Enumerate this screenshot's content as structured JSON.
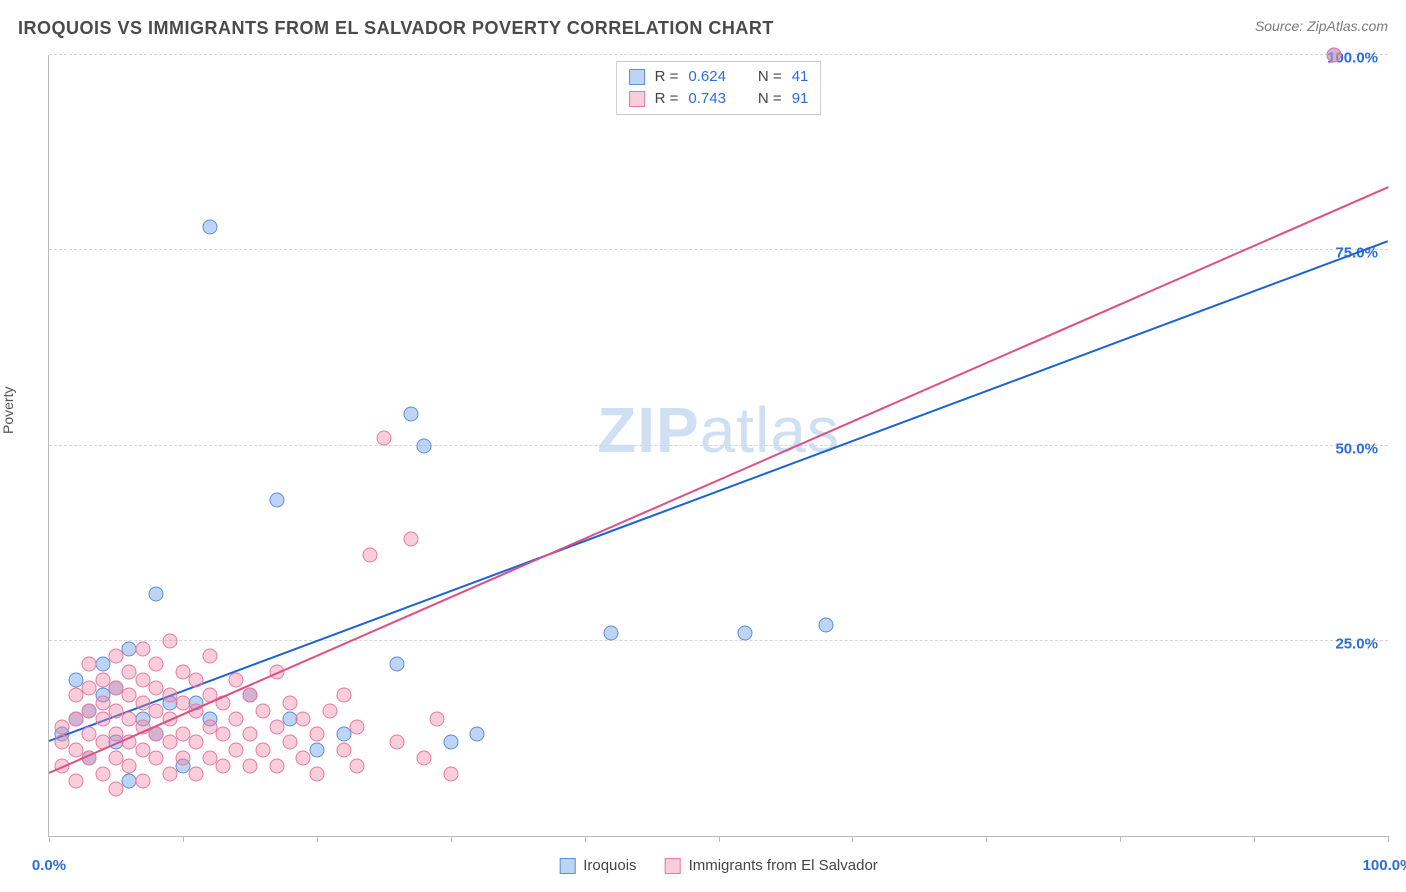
{
  "header": {
    "title": "IROQUOIS VS IMMIGRANTS FROM EL SALVADOR POVERTY CORRELATION CHART",
    "source_prefix": "Source: ",
    "source_name": "ZipAtlas.com"
  },
  "axes": {
    "ylabel": "Poverty",
    "xlim": [
      0,
      100
    ],
    "ylim": [
      0,
      100
    ],
    "x_ticks": [
      0,
      10,
      20,
      30,
      40,
      50,
      60,
      70,
      80,
      90,
      100
    ],
    "y_ticks": [
      25,
      50,
      75,
      100
    ],
    "x_tick_labels": {
      "0": "0.0%",
      "100": "100.0%"
    },
    "y_tick_labels": {
      "25": "25.0%",
      "50": "50.0%",
      "75": "75.0%",
      "100": "100.0%"
    },
    "label_color": "#2b6ed8",
    "grid_color": "#d6d6d6",
    "axis_color": "#bbbbbb"
  },
  "watermark": {
    "text_bold": "ZIP",
    "text_light": "atlas"
  },
  "series": [
    {
      "key": "iroquois",
      "label": "Iroquois",
      "type": "scatter",
      "R": 0.624,
      "N": 41,
      "fill_color": "rgba(110,160,230,0.45)",
      "stroke_color": "#5a8fd6",
      "line_color": "#1b63d6",
      "reg_line": {
        "x1": 0,
        "y1": 12,
        "x2": 100,
        "y2": 76
      },
      "points": [
        [
          1,
          13
        ],
        [
          2,
          15
        ],
        [
          2,
          20
        ],
        [
          3,
          10
        ],
        [
          3,
          16
        ],
        [
          4,
          18
        ],
        [
          4,
          22
        ],
        [
          5,
          12
        ],
        [
          5,
          19
        ],
        [
          6,
          7
        ],
        [
          6,
          24
        ],
        [
          7,
          15
        ],
        [
          8,
          13
        ],
        [
          8,
          31
        ],
        [
          9,
          17
        ],
        [
          10,
          9
        ],
        [
          11,
          17
        ],
        [
          12,
          15
        ],
        [
          12,
          78
        ],
        [
          15,
          18
        ],
        [
          17,
          43
        ],
        [
          18,
          15
        ],
        [
          20,
          11
        ],
        [
          22,
          13
        ],
        [
          26,
          22
        ],
        [
          27,
          54
        ],
        [
          28,
          50
        ],
        [
          30,
          12
        ],
        [
          32,
          13
        ],
        [
          42,
          26
        ],
        [
          52,
          26
        ],
        [
          58,
          27
        ],
        [
          96,
          100
        ]
      ]
    },
    {
      "key": "el_salvador",
      "label": "Immigrants from El Salvador",
      "type": "scatter",
      "R": 0.743,
      "N": 91,
      "fill_color": "rgba(240,130,160,0.40)",
      "stroke_color": "#e77aa0",
      "line_color": "#e14f82",
      "reg_line": {
        "x1": 0,
        "y1": 8,
        "x2": 100,
        "y2": 83
      },
      "points": [
        [
          1,
          12
        ],
        [
          1,
          14
        ],
        [
          1,
          9
        ],
        [
          2,
          11
        ],
        [
          2,
          15
        ],
        [
          2,
          18
        ],
        [
          2,
          7
        ],
        [
          3,
          10
        ],
        [
          3,
          13
        ],
        [
          3,
          16
        ],
        [
          3,
          19
        ],
        [
          3,
          22
        ],
        [
          4,
          8
        ],
        [
          4,
          12
        ],
        [
          4,
          15
        ],
        [
          4,
          17
        ],
        [
          4,
          20
        ],
        [
          5,
          6
        ],
        [
          5,
          10
        ],
        [
          5,
          13
        ],
        [
          5,
          16
        ],
        [
          5,
          19
        ],
        [
          5,
          23
        ],
        [
          6,
          9
        ],
        [
          6,
          12
        ],
        [
          6,
          15
        ],
        [
          6,
          18
        ],
        [
          6,
          21
        ],
        [
          7,
          7
        ],
        [
          7,
          11
        ],
        [
          7,
          14
        ],
        [
          7,
          17
        ],
        [
          7,
          20
        ],
        [
          7,
          24
        ],
        [
          8,
          10
        ],
        [
          8,
          13
        ],
        [
          8,
          16
        ],
        [
          8,
          19
        ],
        [
          8,
          22
        ],
        [
          9,
          8
        ],
        [
          9,
          12
        ],
        [
          9,
          15
        ],
        [
          9,
          18
        ],
        [
          9,
          25
        ],
        [
          10,
          10
        ],
        [
          10,
          13
        ],
        [
          10,
          17
        ],
        [
          10,
          21
        ],
        [
          11,
          8
        ],
        [
          11,
          12
        ],
        [
          11,
          16
        ],
        [
          11,
          20
        ],
        [
          12,
          10
        ],
        [
          12,
          14
        ],
        [
          12,
          18
        ],
        [
          12,
          23
        ],
        [
          13,
          9
        ],
        [
          13,
          13
        ],
        [
          13,
          17
        ],
        [
          14,
          11
        ],
        [
          14,
          15
        ],
        [
          14,
          20
        ],
        [
          15,
          9
        ],
        [
          15,
          13
        ],
        [
          15,
          18
        ],
        [
          16,
          11
        ],
        [
          16,
          16
        ],
        [
          17,
          9
        ],
        [
          17,
          14
        ],
        [
          17,
          21
        ],
        [
          18,
          12
        ],
        [
          18,
          17
        ],
        [
          19,
          10
        ],
        [
          19,
          15
        ],
        [
          20,
          8
        ],
        [
          20,
          13
        ],
        [
          21,
          16
        ],
        [
          22,
          11
        ],
        [
          22,
          18
        ],
        [
          23,
          9
        ],
        [
          23,
          14
        ],
        [
          24,
          36
        ],
        [
          25,
          51
        ],
        [
          26,
          12
        ],
        [
          27,
          38
        ],
        [
          28,
          10
        ],
        [
          29,
          15
        ],
        [
          30,
          8
        ],
        [
          96,
          100
        ]
      ]
    }
  ],
  "legend_top": {
    "R_label": "R =",
    "N_label": "N ="
  },
  "colors": {
    "background": "#ffffff",
    "title_color": "#4a4a4a",
    "source_color": "#7a7a7a",
    "blue_num": "#2b6ed8"
  }
}
